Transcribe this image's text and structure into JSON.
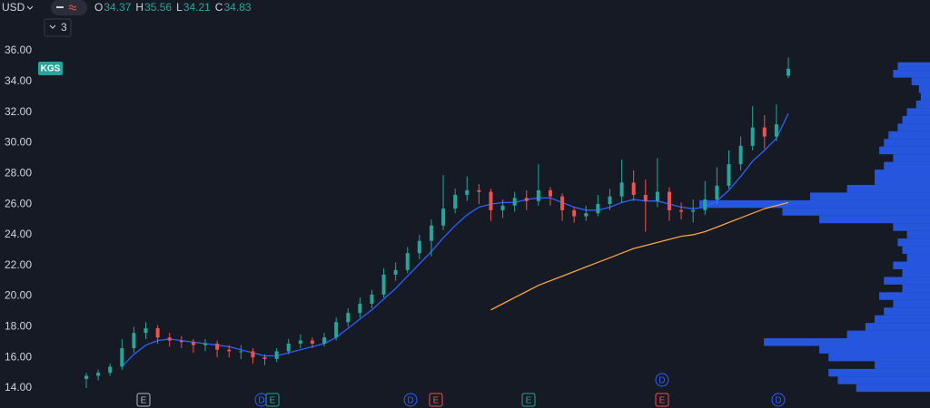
{
  "chart_data": {
    "type": "candlestick",
    "currency": "USD",
    "symbol": "KGS",
    "interval_badge": "3",
    "ohlc_letters": [
      "O",
      "H",
      "L",
      "C"
    ],
    "up_color": "#26a69a",
    "down_color": "#ef5350",
    "open": [
      14.6,
      14.8,
      15.0,
      15.4,
      16.6,
      17.6,
      17.9,
      17.3,
      17.1,
      17.0,
      16.8,
      16.9,
      16.5,
      16.4,
      16.4,
      16.0,
      15.9,
      16.4,
      16.9,
      17.1,
      16.9,
      17.3,
      18.3,
      18.9,
      19.5,
      20.1,
      21.4,
      21.7,
      22.8,
      23.6,
      24.6,
      25.7,
      26.6,
      26.9,
      26.8,
      25.6,
      25.9,
      26.4,
      26.2,
      26.9,
      26.5,
      25.6,
      25.2,
      25.4,
      26.0,
      26.5,
      27.4,
      26.6,
      26.2,
      26.8,
      25.6,
      25.5,
      25.6,
      26.3,
      27.2,
      28.6,
      29.8,
      31.0,
      30.4,
      34.37
    ],
    "high": [
      15.0,
      15.2,
      15.6,
      17.2,
      18.0,
      18.3,
      18.1,
      17.6,
      17.4,
      17.2,
      17.2,
      17.1,
      16.8,
      16.8,
      16.6,
      16.2,
      16.6,
      17.2,
      17.5,
      17.3,
      17.6,
      18.6,
      19.2,
      19.9,
      20.4,
      21.8,
      22.2,
      23.2,
      24.0,
      25.0,
      27.9,
      27.0,
      27.8,
      27.3,
      27.0,
      26.3,
      26.8,
      26.9,
      28.6,
      27.1,
      26.7,
      25.8,
      25.9,
      26.6,
      27.0,
      28.9,
      28.2,
      27.6,
      29.0,
      27.1,
      26.1,
      26.3,
      27.5,
      28.4,
      29.5,
      30.4,
      32.4,
      31.8,
      32.5,
      35.56
    ],
    "low": [
      14.0,
      14.5,
      14.8,
      15.2,
      16.3,
      17.2,
      16.9,
      16.7,
      16.6,
      16.3,
      16.4,
      16.0,
      16.0,
      15.9,
      15.6,
      15.5,
      15.7,
      16.2,
      16.6,
      16.6,
      16.7,
      17.1,
      18.0,
      18.6,
      19.2,
      19.9,
      21.0,
      21.5,
      22.4,
      22.6,
      24.3,
      25.4,
      26.2,
      26.0,
      24.9,
      25.1,
      25.5,
      25.6,
      25.9,
      25.9,
      24.9,
      24.8,
      24.9,
      25.2,
      25.6,
      26.1,
      26.2,
      24.2,
      25.8,
      24.9,
      25.0,
      24.8,
      25.3,
      26.0,
      27.0,
      28.2,
      29.5,
      29.6,
      30.1,
      34.21
    ],
    "close": [
      14.8,
      15.0,
      15.4,
      16.6,
      17.6,
      17.9,
      17.3,
      17.1,
      17.0,
      16.8,
      16.9,
      16.5,
      16.4,
      16.4,
      16.0,
      15.9,
      16.4,
      16.9,
      17.1,
      16.9,
      17.3,
      18.3,
      18.9,
      19.5,
      20.1,
      21.4,
      21.7,
      22.8,
      23.6,
      24.6,
      25.7,
      26.6,
      26.9,
      26.8,
      25.6,
      25.9,
      26.4,
      26.2,
      26.9,
      26.5,
      25.6,
      25.2,
      25.4,
      26.0,
      26.5,
      27.4,
      26.6,
      26.2,
      26.8,
      25.6,
      25.5,
      25.6,
      26.3,
      27.2,
      28.6,
      29.8,
      31.0,
      30.4,
      31.2,
      34.83
    ],
    "series": [
      {
        "color": "#2962ff",
        "values": [
          null,
          null,
          null,
          15.4,
          16.2,
          16.8,
          17.1,
          17.2,
          17.1,
          17.0,
          16.9,
          16.8,
          16.7,
          16.5,
          16.3,
          16.1,
          16.1,
          16.3,
          16.5,
          16.7,
          16.9,
          17.3,
          17.9,
          18.5,
          19.1,
          19.8,
          20.5,
          21.3,
          22.1,
          22.9,
          23.8,
          24.6,
          25.3,
          25.8,
          26.0,
          26.1,
          26.1,
          26.3,
          26.4,
          26.4,
          26.1,
          25.8,
          25.6,
          25.6,
          25.8,
          26.1,
          26.3,
          26.2,
          26.2,
          26.0,
          25.8,
          25.7,
          25.8,
          26.2,
          26.9,
          27.8,
          28.8,
          29.5,
          30.3,
          31.9
        ]
      },
      {
        "color": "#f7a440",
        "values": [
          null,
          null,
          null,
          null,
          null,
          null,
          null,
          null,
          null,
          null,
          null,
          null,
          null,
          null,
          null,
          null,
          null,
          null,
          null,
          null,
          null,
          null,
          null,
          null,
          null,
          null,
          null,
          null,
          null,
          null,
          null,
          null,
          null,
          null,
          19.1,
          19.5,
          19.9,
          20.3,
          20.7,
          21.0,
          21.3,
          21.6,
          21.9,
          22.2,
          22.5,
          22.8,
          23.1,
          23.3,
          23.5,
          23.7,
          23.9,
          24.0,
          24.2,
          24.5,
          24.8,
          25.1,
          25.4,
          25.7,
          25.9,
          26.1
        ]
      }
    ],
    "volume_profile": {
      "color": "#2962ff",
      "prices": [
        14.0,
        14.5,
        15.0,
        15.5,
        16.0,
        16.5,
        17.0,
        17.5,
        18.0,
        18.5,
        19.0,
        19.5,
        20.0,
        20.5,
        21.0,
        21.5,
        22.0,
        22.5,
        23.0,
        23.5,
        24.0,
        24.5,
        25.0,
        25.5,
        26.0,
        26.5,
        27.0,
        27.5,
        28.0,
        28.5,
        29.0,
        29.5,
        30.0,
        30.5,
        31.0,
        31.5,
        32.0,
        32.5,
        33.0,
        33.5,
        34.0,
        34.5,
        35.0
      ],
      "values": [
        80,
        100,
        110,
        60,
        110,
        120,
        180,
        90,
        70,
        60,
        50,
        40,
        55,
        30,
        50,
        30,
        40,
        25,
        30,
        35,
        25,
        40,
        120,
        160,
        250,
        130,
        90,
        60,
        60,
        50,
        40,
        55,
        50,
        45,
        35,
        30,
        25,
        15,
        10,
        12,
        20,
        40,
        35
      ]
    },
    "ylim": [
      12.7,
      39.31
    ],
    "yticks": [
      {
        "value": 14,
        "label": "14.00"
      },
      {
        "value": 16,
        "label": "16.00"
      },
      {
        "value": 18,
        "label": "18.00"
      },
      {
        "value": 20,
        "label": "20.00"
      },
      {
        "value": 22,
        "label": "22.00"
      },
      {
        "value": 24,
        "label": "24.00"
      },
      {
        "value": 26,
        "label": "26.00"
      },
      {
        "value": 28,
        "label": "28.00"
      },
      {
        "value": 30,
        "label": "30.00"
      },
      {
        "value": 32,
        "label": "32.00"
      },
      {
        "value": 34,
        "label": "34.00"
      },
      {
        "value": 36,
        "label": "36.00"
      }
    ],
    "events": [
      {
        "label": "E",
        "shape": "square",
        "color": "#b2b5be"
      },
      {
        "label": "D",
        "shape": "circle",
        "color": "#2962ff"
      },
      {
        "label": "E",
        "shape": "square",
        "color": "#26a69a"
      },
      {
        "label": "D",
        "shape": "circle",
        "color": "#2962ff"
      },
      {
        "label": "E",
        "shape": "square",
        "color": "#ef5350"
      },
      {
        "label": "E",
        "shape": "square",
        "color": "#26a69a"
      },
      {
        "label": "D",
        "shape": "circle",
        "color": "#2962ff"
      },
      {
        "label": "E",
        "shape": "square",
        "color": "#ef5350"
      },
      {
        "label": "D",
        "shape": "circle",
        "color": "#2962ff"
      }
    ]
  }
}
